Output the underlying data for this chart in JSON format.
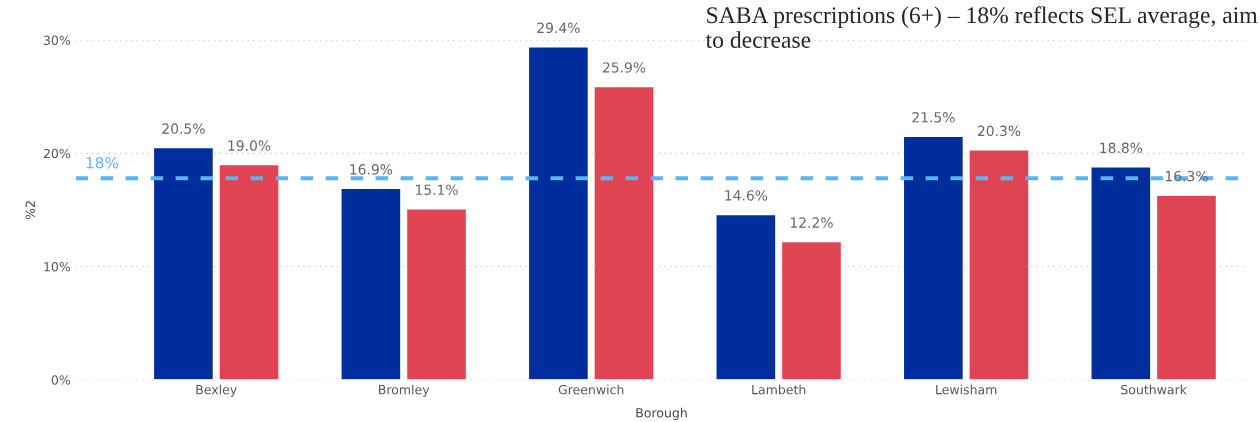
{
  "chart_data": {
    "type": "bar",
    "categories": [
      "Bexley",
      "Bromley",
      "Greenwich",
      "Lambeth",
      "Lewisham",
      "Southwark"
    ],
    "series": [
      {
        "color": "#002d9c",
        "values": [
          20.5,
          16.9,
          29.4,
          14.6,
          21.5,
          18.8
        ],
        "value_labels": [
          "20.5%",
          "16.9%",
          "29.4%",
          "14.6%",
          "21.5%",
          "18.8%"
        ]
      },
      {
        "color": "#e04352",
        "values": [
          19.0,
          15.1,
          25.9,
          12.2,
          20.3,
          16.3
        ],
        "value_labels": [
          "19.0%",
          "15.1%",
          "25.9%",
          "12.2%",
          "20.3%",
          "16.3%"
        ]
      }
    ],
    "xlabel": "Borough",
    "ylabel": "%2",
    "ylim": [
      0,
      30
    ],
    "yticks": [
      {
        "value": 0,
        "label": "0%"
      },
      {
        "value": 10,
        "label": "10%"
      },
      {
        "value": 20,
        "label": "20%"
      },
      {
        "value": 30,
        "label": "30%"
      }
    ],
    "grid": "y",
    "legend": false,
    "ref_lines": [
      {
        "axis": "y",
        "value": 17.8,
        "label": "18%",
        "color": "#5ab4f5",
        "line_style": "dashed"
      }
    ],
    "annotations": [
      "SABA prescriptions (6+) – 18% reflects SEL average, aim to decrease"
    ]
  }
}
